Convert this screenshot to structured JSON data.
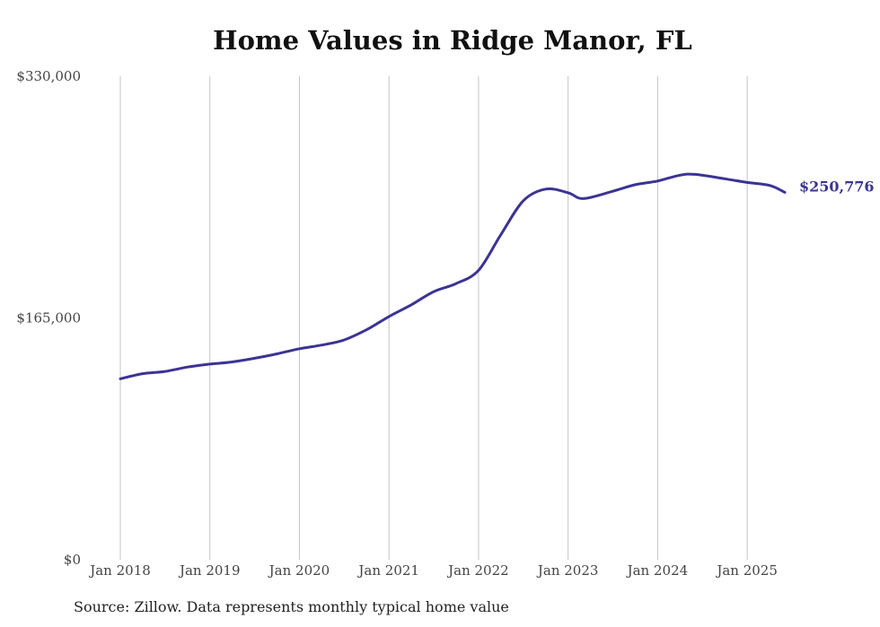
{
  "chart_data": {
    "type": "line",
    "title": "Home Values in Ridge Manor, FL",
    "source": "Source: Zillow. Data represents monthly typical home value",
    "ylim": [
      0,
      330000
    ],
    "y_ticks": [
      {
        "value": 0,
        "label": "$0"
      },
      {
        "value": 165000,
        "label": "$165,000"
      },
      {
        "value": 330000,
        "label": "$330,000"
      }
    ],
    "x_ticks": [
      {
        "value": 2018.0,
        "label": "Jan 2018"
      },
      {
        "value": 2019.0,
        "label": "Jan 2019"
      },
      {
        "value": 2020.0,
        "label": "Jan 2020"
      },
      {
        "value": 2021.0,
        "label": "Jan 2021"
      },
      {
        "value": 2022.0,
        "label": "Jan 2022"
      },
      {
        "value": 2023.0,
        "label": "Jan 2023"
      },
      {
        "value": 2024.0,
        "label": "Jan 2024"
      },
      {
        "value": 2025.0,
        "label": "Jan 2025"
      }
    ],
    "xlim": [
      2018.0,
      2025.42
    ],
    "grid": "vertical",
    "line_color": "#3b3494",
    "end_label": "$250,776",
    "series": [
      {
        "points": [
          [
            2018.0,
            123500
          ],
          [
            2018.25,
            127000
          ],
          [
            2018.5,
            128500
          ],
          [
            2018.75,
            131500
          ],
          [
            2019.0,
            133500
          ],
          [
            2019.25,
            135000
          ],
          [
            2019.5,
            137500
          ],
          [
            2019.75,
            140500
          ],
          [
            2020.0,
            144000
          ],
          [
            2020.25,
            146500
          ],
          [
            2020.5,
            150000
          ],
          [
            2020.75,
            157000
          ],
          [
            2021.0,
            166000
          ],
          [
            2021.25,
            174000
          ],
          [
            2021.5,
            183000
          ],
          [
            2021.75,
            188500
          ],
          [
            2022.0,
            197500
          ],
          [
            2022.25,
            222000
          ],
          [
            2022.5,
            245000
          ],
          [
            2022.75,
            253000
          ],
          [
            2023.0,
            250500
          ],
          [
            2023.17,
            246500
          ],
          [
            2023.5,
            251500
          ],
          [
            2023.75,
            256000
          ],
          [
            2024.0,
            258500
          ],
          [
            2024.25,
            262500
          ],
          [
            2024.42,
            263000
          ],
          [
            2024.75,
            260000
          ],
          [
            2025.0,
            257500
          ],
          [
            2025.25,
            255500
          ],
          [
            2025.42,
            250776
          ]
        ]
      }
    ]
  }
}
